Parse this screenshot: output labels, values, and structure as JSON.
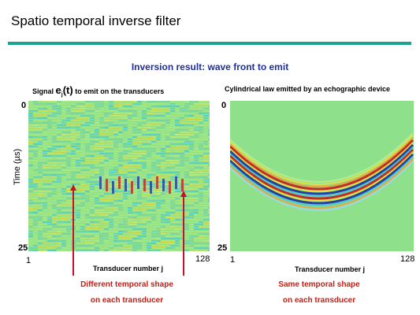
{
  "slide": {
    "title": "Spatio temporal inverse filter",
    "subtitle": "Inversion result: wave front to emit"
  },
  "left_panel": {
    "title_prefix": "Signal ",
    "title_symbol": "e",
    "title_subscript": "j",
    "title_arg": "(t)",
    "title_suffix": " to emit on the transducers",
    "y_top": "0",
    "y_bottom": "25",
    "y_label": "Time (µs)",
    "x_left": "1",
    "x_right": "128",
    "x_label": "Transducer number j",
    "caption_line1": "Different  temporal shape",
    "caption_line2": "on each transducer"
  },
  "right_panel": {
    "title": "Cylindrical law emitted by an echographic device",
    "y_top": "0",
    "y_bottom": "25",
    "x_left": "1",
    "x_right": "128",
    "x_label": "Transducer number j",
    "caption_line1": "Same  temporal shape",
    "caption_line2": "on each transducer"
  },
  "colors": {
    "accent_rule": "#1aa38f",
    "subtitle": "#1f2f9c",
    "caption": "#cc1a10",
    "field_green": "#8fe08a",
    "wave_red": "#c81a1a",
    "wave_blue": "#1a2fa0",
    "wave_yellow": "#e8e040",
    "wave_cyan": "#40c8e0"
  }
}
